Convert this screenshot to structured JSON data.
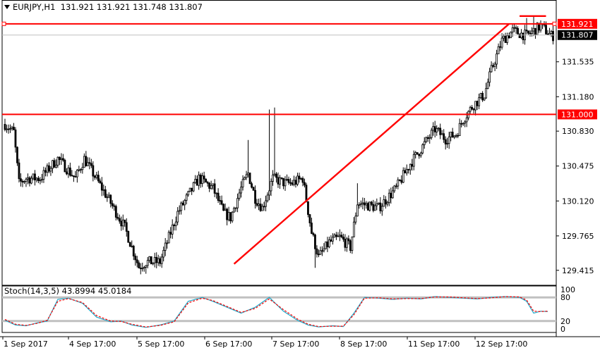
{
  "header": {
    "symbol": "EURJPY,H1",
    "ohlc": "131.921 131.921 131.748 131.807"
  },
  "colors": {
    "bullish": "#ffffff",
    "bearish": "#000000",
    "candle_border": "#000000",
    "support_resistance": "#ff0000",
    "bid_line": "#c0c0c0",
    "stoch_main": "#20a8c8",
    "stoch_signal": "#ff0000",
    "stoch_levels": "#c0c0c0"
  },
  "chart_data": [
    {
      "type": "candlestick",
      "title": "EURJPY,H1",
      "ylim": [
        129.27,
        132.02
      ],
      "y_ticks": [
        "131.535",
        "131.180",
        "130.830",
        "130.475",
        "130.120",
        "129.765",
        "129.415"
      ],
      "x_ticks": [
        "1 Sep 2017",
        "4 Sep 17:00",
        "5 Sep 17:00",
        "6 Sep 17:00",
        "7 Sep 17:00",
        "8 Sep 17:00",
        "11 Sep 17:00",
        "12 Sep 17:00"
      ],
      "price_labels": {
        "resistance_top": "131.921",
        "current": "131.807",
        "resistance_mid": "131.000"
      },
      "horizontal_levels": [
        131.921,
        131.0
      ],
      "bid_level": 131.807,
      "trendline": {
        "from": {
          "candle": 130,
          "price": 129.48
        },
        "to": {
          "candle": 198,
          "price": 131.92
        }
      },
      "close_path": [
        [
          0,
          130.9
        ],
        [
          5,
          130.82
        ],
        [
          8,
          130.3
        ],
        [
          12,
          130.35
        ],
        [
          20,
          130.35
        ],
        [
          30,
          130.55
        ],
        [
          40,
          130.35
        ],
        [
          45,
          130.55
        ],
        [
          55,
          130.25
        ],
        [
          60,
          130.1
        ],
        [
          68,
          129.85
        ],
        [
          76,
          129.45
        ],
        [
          80,
          129.5
        ],
        [
          88,
          129.5
        ],
        [
          98,
          130.0
        ],
        [
          110,
          130.35
        ],
        [
          118,
          130.25
        ],
        [
          124,
          130.0
        ],
        [
          128,
          129.95
        ],
        [
          134,
          130.25
        ],
        [
          138,
          130.4
        ],
        [
          142,
          130.15
        ],
        [
          146,
          130.05
        ],
        [
          152,
          130.35
        ],
        [
          159,
          130.3
        ],
        [
          163,
          130.3
        ],
        [
          169,
          130.35
        ],
        [
          174,
          129.8
        ],
        [
          178,
          129.55
        ],
        [
          184,
          129.7
        ],
        [
          190,
          129.75
        ],
        [
          196,
          129.65
        ],
        [
          200,
          130.1
        ],
        [
          212,
          130.05
        ],
        [
          222,
          130.25
        ],
        [
          230,
          130.5
        ],
        [
          238,
          130.7
        ],
        [
          244,
          130.85
        ],
        [
          250,
          130.75
        ],
        [
          256,
          130.8
        ],
        [
          260,
          130.95
        ],
        [
          266,
          131.1
        ],
        [
          272,
          131.2
        ],
        [
          276,
          131.45
        ],
        [
          282,
          131.75
        ],
        [
          288,
          131.85
        ],
        [
          296,
          131.8
        ],
        [
          304,
          131.9
        ],
        [
          310,
          131.8
        ]
      ]
    },
    {
      "type": "line",
      "title": "Stoch(14,3,5) 43.8994 45.0184",
      "ylim": [
        0,
        100
      ],
      "levels": [
        80,
        20
      ],
      "y_ticks": [
        "100",
        "80",
        "20",
        "0"
      ],
      "series": [
        {
          "name": "main",
          "points": [
            [
              0,
              22
            ],
            [
              6,
              10
            ],
            [
              12,
              8
            ],
            [
              18,
              15
            ],
            [
              24,
              20
            ],
            [
              30,
              75
            ],
            [
              36,
              78
            ],
            [
              44,
              65
            ],
            [
              52,
              30
            ],
            [
              60,
              18
            ],
            [
              66,
              20
            ],
            [
              72,
              10
            ],
            [
              80,
              4
            ],
            [
              88,
              10
            ],
            [
              96,
              20
            ],
            [
              104,
              70
            ],
            [
              112,
              80
            ],
            [
              118,
              70
            ],
            [
              126,
              55
            ],
            [
              134,
              40
            ],
            [
              142,
              55
            ],
            [
              150,
              80
            ],
            [
              158,
              45
            ],
            [
              166,
              22
            ],
            [
              172,
              10
            ],
            [
              178,
              5
            ],
            [
              186,
              8
            ],
            [
              192,
              6
            ],
            [
              198,
              40
            ],
            [
              204,
              80
            ],
            [
              212,
              78
            ],
            [
              220,
              75
            ],
            [
              228,
              78
            ],
            [
              236,
              76
            ],
            [
              244,
              82
            ],
            [
              252,
              80
            ],
            [
              260,
              78
            ],
            [
              268,
              76
            ],
            [
              276,
              80
            ],
            [
              284,
              82
            ],
            [
              292,
              80
            ],
            [
              296,
              70
            ],
            [
              300,
              40
            ],
            [
              304,
              45
            ],
            [
              308,
              44
            ]
          ]
        },
        {
          "name": "signal",
          "points": [
            [
              0,
              24
            ],
            [
              6,
              12
            ],
            [
              12,
              9
            ],
            [
              18,
              14
            ],
            [
              24,
              22
            ],
            [
              30,
              70
            ],
            [
              36,
              77
            ],
            [
              44,
              67
            ],
            [
              52,
              34
            ],
            [
              60,
              20
            ],
            [
              66,
              19
            ],
            [
              72,
              12
            ],
            [
              80,
              5
            ],
            [
              88,
              9
            ],
            [
              96,
              18
            ],
            [
              104,
              66
            ],
            [
              112,
              78
            ],
            [
              118,
              72
            ],
            [
              126,
              57
            ],
            [
              134,
              42
            ],
            [
              142,
              52
            ],
            [
              150,
              76
            ],
            [
              158,
              49
            ],
            [
              166,
              25
            ],
            [
              172,
              12
            ],
            [
              178,
              6
            ],
            [
              186,
              7
            ],
            [
              192,
              7
            ],
            [
              198,
              36
            ],
            [
              204,
              78
            ],
            [
              212,
              79
            ],
            [
              220,
              76
            ],
            [
              228,
              77
            ],
            [
              236,
              77
            ],
            [
              244,
              81
            ],
            [
              252,
              81
            ],
            [
              260,
              79
            ],
            [
              268,
              77
            ],
            [
              276,
              79
            ],
            [
              284,
              82
            ],
            [
              292,
              81
            ],
            [
              296,
              73
            ],
            [
              300,
              45
            ],
            [
              304,
              44
            ],
            [
              308,
              45
            ]
          ]
        }
      ]
    }
  ]
}
